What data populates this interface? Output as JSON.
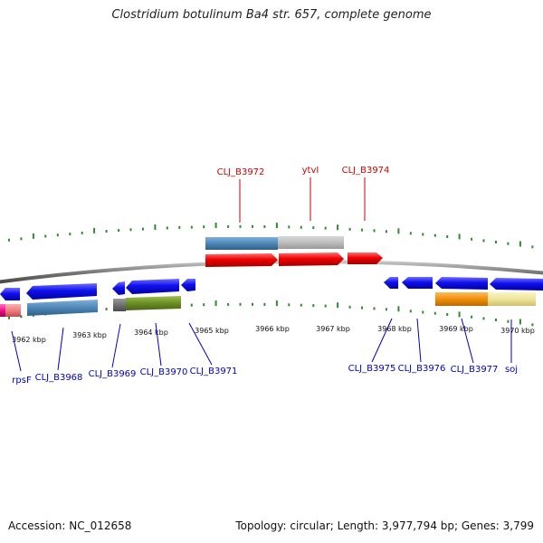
{
  "title": "Clostridium botulinum Ba4 str. 657, complete genome",
  "footer": {
    "accession": "Accession: NC_012658",
    "info": "Topology: circular; Length: 3,977,794 bp; Genes: 3,799"
  },
  "colors": {
    "backbone": "#808080",
    "tick": "#2e8b2e",
    "label_top": "#cc0000",
    "label_bottom": "#0000bb",
    "forward_gene": "#ee0000",
    "reverse_gene": "#0000ee",
    "steelblue_feature": "#4f87b8",
    "gray_feature": "#bdbdbd",
    "olive_feature": "#6b8e23",
    "orange_feature": "#f0900a",
    "khaki_feature": "#efe49a",
    "pink_feature": "#f08080",
    "magenta_feature": "#ee1188",
    "dark_gray_feature": "#707070"
  },
  "scale_labels": [
    "3962 kbp",
    "3963 kbp",
    "3964 kbp",
    "3965 kbp",
    "3966 kbp",
    "3967 kbp",
    "3968 kbp",
    "3969 kbp",
    "3970 kbp"
  ],
  "gene_labels_top": [
    "CLJ_B3972",
    "ytvI",
    "CLJ_B3974"
  ],
  "gene_labels_bottom": [
    "rpsF",
    "CLJ_B3968",
    "CLJ_B3969",
    "CLJ_B3970",
    "CLJ_B3971",
    "CLJ_B3975",
    "CLJ_B3976",
    "CLJ_B3977",
    "soj"
  ]
}
